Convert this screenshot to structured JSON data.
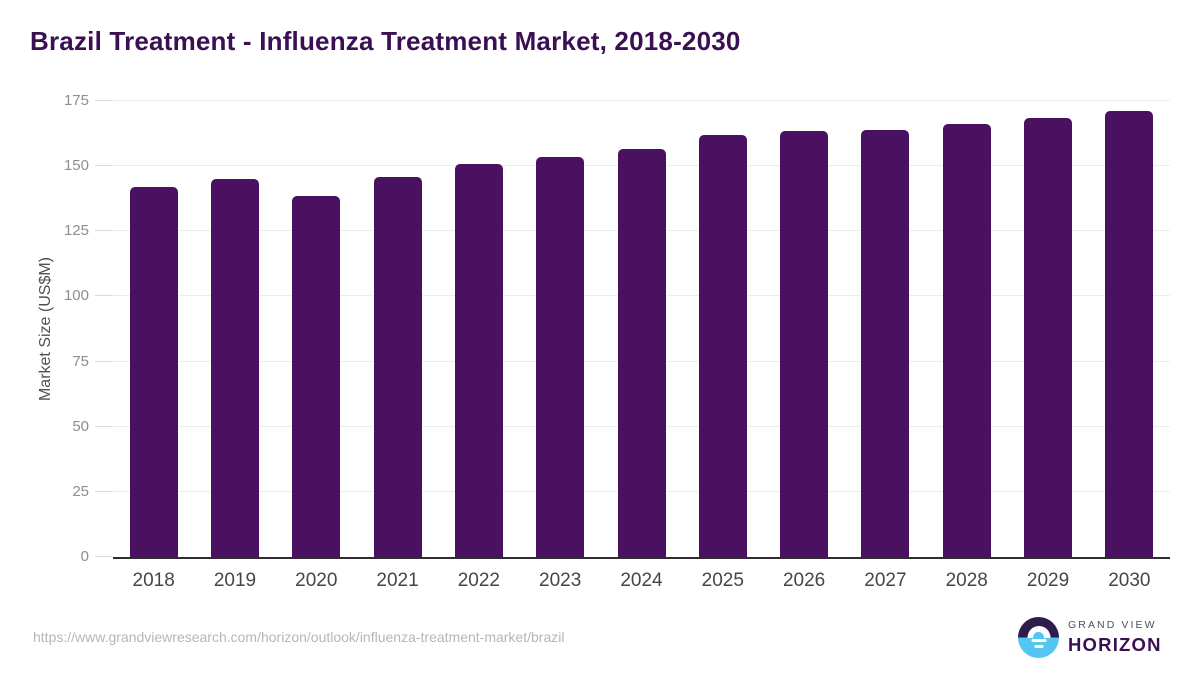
{
  "chart_data": {
    "type": "bar",
    "title": "Brazil Treatment - Influenza Treatment Market, 2018-2030",
    "xlabel": "",
    "ylabel": "Market Size (US$M)",
    "categories": [
      "2018",
      "2019",
      "2020",
      "2021",
      "2022",
      "2023",
      "2024",
      "2025",
      "2026",
      "2027",
      "2028",
      "2029",
      "2030"
    ],
    "values": [
      142,
      145,
      138.5,
      146,
      151,
      153.5,
      156.5,
      162,
      163.5,
      164,
      166,
      168.5,
      171
    ],
    "ylim": [
      0,
      175
    ],
    "yticks": [
      0,
      25,
      50,
      75,
      100,
      125,
      150,
      175
    ],
    "grid": true,
    "legend": "none",
    "bar_color": "#49115f",
    "title_color": "#3a1053"
  },
  "footer": {
    "source_url": "https://www.grandviewresearch.com/horizon/outlook/influenza-treatment-market/brazil",
    "logo": {
      "line1": "GRAND VIEW",
      "line2": "HORIZON",
      "circle_top_color": "#2c1d4d",
      "circle_bottom_color": "#55c6f2"
    }
  }
}
